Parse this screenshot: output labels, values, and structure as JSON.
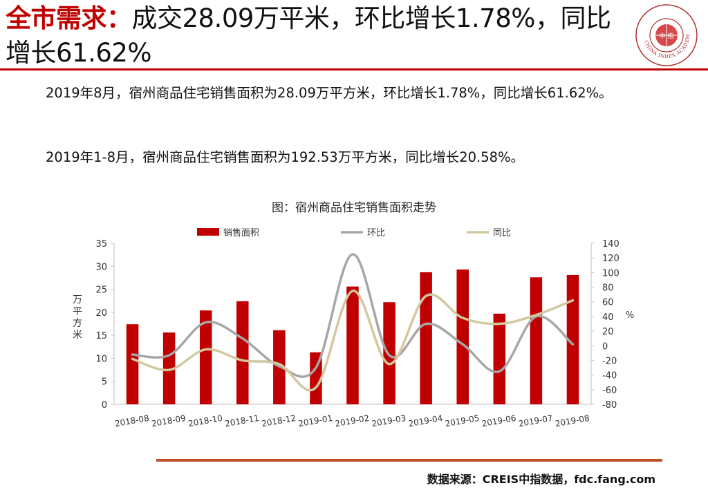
{
  "header": {
    "title_accent": "全市需求：",
    "title_rest": "成交28.09万平米，环比增长1.78%，同比增长61.62%",
    "logo_text": "CHINA INDEX ACADEMY",
    "logo_center": "中 指",
    "accent_color": "#c00000"
  },
  "body": {
    "paragraph1": "2019年8月，宿州商品住宅销售面积为28.09万平方米，环比增长1.78%，同比增长61.62%。",
    "paragraph2": "2019年1-8月，宿州商品住宅销售面积为192.53万平方米，同比增长20.58%。"
  },
  "chart_data": {
    "type": "bar",
    "title": "图：宿州商品住宅销售面积走势",
    "categories": [
      "2018-08",
      "2018-09",
      "2018-10",
      "2018-11",
      "2018-12",
      "2019-01",
      "2019-02",
      "2019-03",
      "2019-04",
      "2019-05",
      "2019-06",
      "2019-07",
      "2019-08"
    ],
    "series": [
      {
        "name": "销售面积",
        "type": "bar",
        "axis": "left",
        "color": "#c00000",
        "values": [
          17.4,
          15.6,
          20.4,
          22.4,
          16.1,
          11.3,
          25.6,
          22.2,
          28.7,
          29.3,
          19.7,
          27.6,
          28.1
        ]
      },
      {
        "name": "环比",
        "type": "line",
        "axis": "right",
        "color": "#a6a6a6",
        "values": [
          -12,
          -13,
          32,
          10,
          -28,
          -30,
          125,
          -13,
          30,
          2,
          -35,
          40,
          2
        ]
      },
      {
        "name": "同比",
        "type": "line",
        "axis": "right",
        "color": "#d2c8a0",
        "values": [
          -18,
          -33,
          -5,
          -20,
          -25,
          -57,
          75,
          -25,
          68,
          38,
          30,
          42,
          62
        ]
      }
    ],
    "ylabel": "万平方米",
    "ylabel_right": "%",
    "ylim": [
      0,
      35
    ],
    "yticks": [
      "0",
      "5",
      "10",
      "15",
      "20",
      "25",
      "30",
      "35"
    ],
    "ylim_right": [
      -80,
      140
    ],
    "yticks_right": [
      "-80",
      "-60",
      "-40",
      "-20",
      "0",
      "20",
      "40",
      "60",
      "80",
      "100",
      "120",
      "140"
    ],
    "legend_position": "top",
    "grid": false
  },
  "footer": {
    "source": "数据来源：CREIS中指数据，fdc.fang.com"
  }
}
